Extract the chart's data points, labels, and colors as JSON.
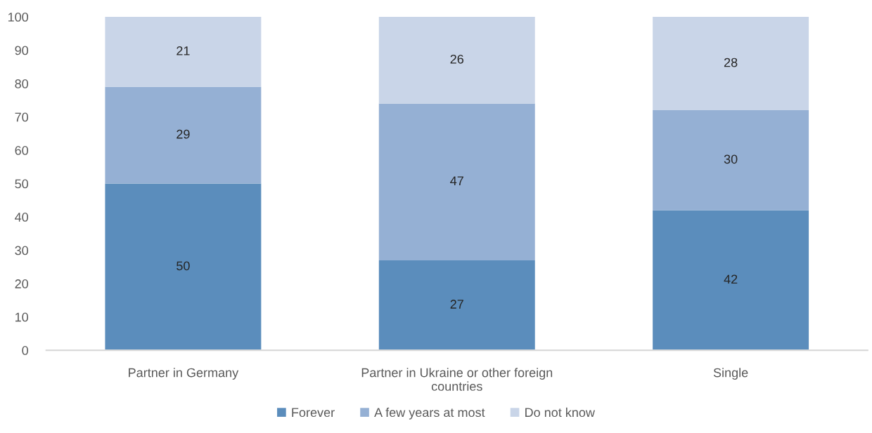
{
  "chart_data": {
    "type": "bar",
    "stacked": true,
    "categories": [
      "Partner in Germany",
      "Partner in Ukraine or other foreign countries",
      "Single"
    ],
    "series": [
      {
        "name": "Forever",
        "color": "#5b8dbc",
        "values": [
          50,
          27,
          42
        ]
      },
      {
        "name": "A few years at most",
        "color": "#95b0d4",
        "values": [
          29,
          47,
          30
        ]
      },
      {
        "name": "Do not know",
        "color": "#c9d5e8",
        "values": [
          21,
          26,
          28
        ]
      }
    ],
    "ylim": [
      0,
      100
    ],
    "yticks": [
      0,
      10,
      20,
      30,
      40,
      50,
      60,
      70,
      80,
      90,
      100
    ],
    "data_labels": true,
    "grid": false,
    "legend": "bottom"
  }
}
